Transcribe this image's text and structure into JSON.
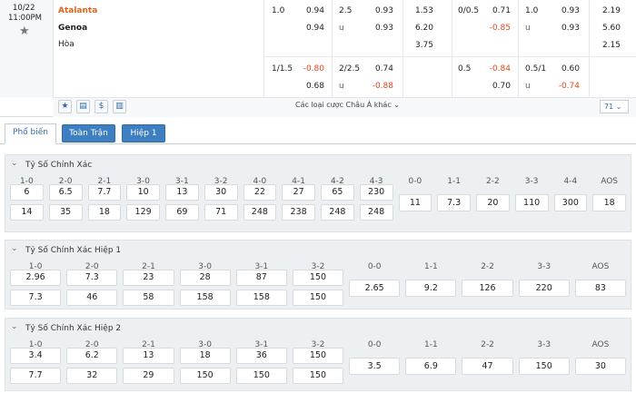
{
  "match": {
    "date": "10/22",
    "time": "11:00PM",
    "home": "Atalanta",
    "away": "Genoa",
    "draw": "Hòa"
  },
  "full_time": {
    "handicap": [
      {
        "line": "1.0",
        "home": "0.94",
        "away": "0.94"
      },
      {
        "line": "1/1.5",
        "home": "-0.80",
        "away": "0.68"
      }
    ],
    "over_under": [
      {
        "line": "2.5",
        "over": "0.93",
        "under_label": "u",
        "under": "0.93"
      },
      {
        "line": "2/2.5",
        "over": "0.74",
        "under_label": "u",
        "under": "-0.88"
      }
    ],
    "one_x_two": [
      "1.53",
      "6.20",
      "3.75"
    ]
  },
  "first_half": {
    "handicap": [
      {
        "line": "0/0.5",
        "home": "0.71",
        "away": "-0.85"
      },
      {
        "line": "0.5",
        "home": "-0.84",
        "away": "0.70"
      }
    ],
    "over_under": [
      {
        "line": "1.0",
        "over": "0.93",
        "under_label": "u",
        "under": "0.93"
      },
      {
        "line": "0.5/1",
        "over": "0.60",
        "under_label": "u",
        "under": "-0.74"
      }
    ],
    "one_x_two": [
      "2.19",
      "5.60",
      "2.15"
    ]
  },
  "more_bets": "Các loại cược Châu Á khác",
  "more_count": "71",
  "tabs": [
    "Phổ biến",
    "Toàn Trận",
    "Hiệp 1"
  ],
  "sections": [
    {
      "title": "Tỷ Số Chính Xác",
      "headers": [
        "1-0",
        "2-0",
        "2-1",
        "3-0",
        "3-1",
        "3-2",
        "4-0",
        "4-1",
        "4-2",
        "4-3",
        "0-0",
        "1-1",
        "2-2",
        "3-3",
        "4-4",
        "AOS"
      ],
      "home": [
        "6",
        "6.5",
        "7.7",
        "10",
        "13",
        "30",
        "22",
        "27",
        "65",
        "230"
      ],
      "away": [
        "14",
        "35",
        "18",
        "129",
        "69",
        "71",
        "248",
        "238",
        "248",
        "248"
      ],
      "draws": [
        "11",
        "7.3",
        "20",
        "110",
        "300",
        "18"
      ]
    },
    {
      "title": "Tỷ Số Chính Xác Hiệp 1",
      "headers": [
        "1-0",
        "2-0",
        "2-1",
        "3-0",
        "3-1",
        "3-2",
        "0-0",
        "1-1",
        "2-2",
        "3-3",
        "AOS"
      ],
      "home": [
        "2.96",
        "7.3",
        "23",
        "28",
        "87",
        "150"
      ],
      "away": [
        "7.3",
        "46",
        "58",
        "158",
        "158",
        "150"
      ],
      "draws": [
        "2.65",
        "9.2",
        "126",
        "220",
        "83"
      ]
    },
    {
      "title": "Tỷ Số Chính Xác Hiệp 2",
      "headers": [
        "1-0",
        "2-0",
        "2-1",
        "3-0",
        "3-1",
        "3-2",
        "0-0",
        "1-1",
        "2-2",
        "3-3",
        "AOS"
      ],
      "home": [
        "3.4",
        "6.2",
        "13",
        "18",
        "36",
        "150"
      ],
      "away": [
        "7.7",
        "32",
        "29",
        "150",
        "150",
        "150"
      ],
      "draws": [
        "3.5",
        "6.9",
        "47",
        "150",
        "30"
      ]
    }
  ]
}
